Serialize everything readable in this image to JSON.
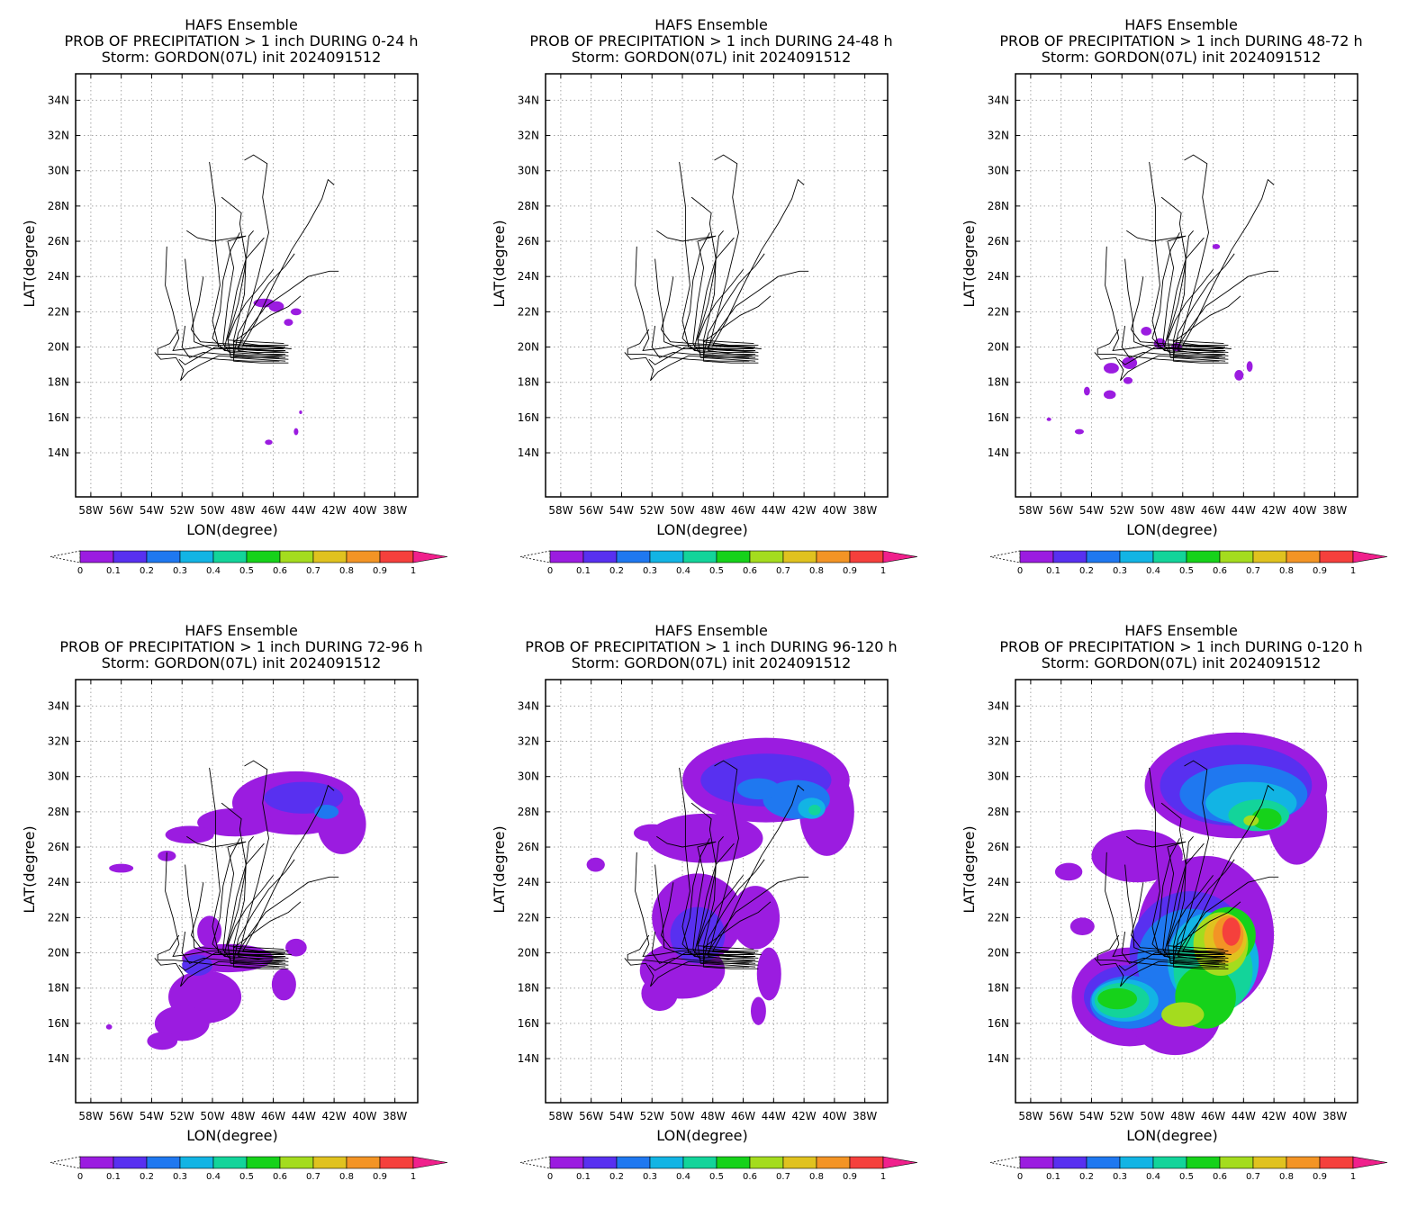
{
  "colors": {
    "levels": [
      "#9b1ce0",
      "#5830f0",
      "#1f78f0",
      "#12b4e4",
      "#13d49a",
      "#16d21a",
      "#a4dc1e",
      "#e0c21f",
      "#f39425",
      "#f5403c",
      "#f0208c"
    ],
    "track": "#000000",
    "grid": "#a6a6a6"
  },
  "colorbar": {
    "labels": [
      "0",
      "0.1",
      "0.2",
      "0.3",
      "0.4",
      "0.5",
      "0.6",
      "0.7",
      "0.8",
      "0.9",
      "1"
    ]
  },
  "axes": {
    "xlabel": "LON(degree)",
    "ylabel": "LAT(degree)",
    "xticks": [
      "58W",
      "56W",
      "54W",
      "52W",
      "50W",
      "48W",
      "46W",
      "44W",
      "42W",
      "40W",
      "38W"
    ],
    "yticks": [
      "34N",
      "32N",
      "30N",
      "28N",
      "26N",
      "24N",
      "22N",
      "20N",
      "18N",
      "16N",
      "14N"
    ],
    "xlim": [
      -59,
      -36.5
    ],
    "ylim": [
      11.5,
      35.5
    ]
  },
  "panels": [
    {
      "title1": "HAFS Ensemble",
      "title2": "PROB OF PRECIPITATION > 1 inch DURING  0-24 h",
      "title3": "Storm: GORDON(07L) init 2024091512"
    },
    {
      "title1": "HAFS Ensemble",
      "title2": "PROB OF PRECIPITATION > 1 inch DURING 24-48 h",
      "title3": "Storm: GORDON(07L) init 2024091512"
    },
    {
      "title1": "HAFS Ensemble",
      "title2": "PROB OF PRECIPITATION > 1 inch DURING 48-72 h",
      "title3": "Storm: GORDON(07L) init 2024091512"
    },
    {
      "title1": "HAFS Ensemble",
      "title2": "PROB OF PRECIPITATION > 1 inch DURING 72-96 h",
      "title3": "Storm: GORDON(07L) init 2024091512"
    },
    {
      "title1": "HAFS Ensemble",
      "title2": "PROB OF PRECIPITATION > 1 inch DURING 96-120 h",
      "title3": "Storm: GORDON(07L) init 2024091512"
    },
    {
      "title1": "HAFS Ensemble",
      "title2": "PROB OF PRECIPITATION > 1 inch DURING 0-120 h",
      "title3": "Storm: GORDON(07L) init 2024091512"
    }
  ],
  "tracks": [
    [
      [
        -45.2,
        20.0
      ],
      [
        -47.0,
        20.0
      ],
      [
        -48.8,
        20.1
      ],
      [
        -50.2,
        20.1
      ],
      [
        -51.6,
        19.9
      ],
      [
        -52.6,
        19.8
      ],
      [
        -52.2,
        20.5
      ],
      [
        -52.6,
        22.0
      ],
      [
        -53.1,
        23.5
      ],
      [
        -53.0,
        25.7
      ]
    ],
    [
      [
        -45.2,
        19.8
      ],
      [
        -47.0,
        19.8
      ],
      [
        -48.8,
        19.9
      ],
      [
        -50.0,
        19.9
      ],
      [
        -51.2,
        20.3
      ],
      [
        -51.3,
        21.7
      ],
      [
        -51.6,
        23.2
      ],
      [
        -51.8,
        25.0
      ]
    ],
    [
      [
        -45.2,
        19.6
      ],
      [
        -47.0,
        19.6
      ],
      [
        -48.8,
        19.7
      ],
      [
        -49.6,
        20.0
      ],
      [
        -50.0,
        21.5
      ],
      [
        -49.5,
        23.5
      ],
      [
        -49.8,
        26.0
      ],
      [
        -49.8,
        28.0
      ],
      [
        -50.2,
        30.5
      ]
    ],
    [
      [
        -45.2,
        19.4
      ],
      [
        -47.0,
        19.5
      ],
      [
        -48.8,
        19.6
      ],
      [
        -49.3,
        20.2
      ],
      [
        -49.0,
        22.5
      ],
      [
        -48.6,
        24.5
      ],
      [
        -49.0,
        26.0
      ],
      [
        -47.8,
        26.3
      ],
      [
        -50.0,
        26.0
      ],
      [
        -51.0,
        26.2
      ],
      [
        -51.7,
        26.6
      ]
    ],
    [
      [
        -45.2,
        19.2
      ],
      [
        -47.0,
        19.3
      ],
      [
        -48.8,
        19.4
      ],
      [
        -49.0,
        20.5
      ],
      [
        -48.3,
        22.5
      ],
      [
        -47.9,
        24.3
      ],
      [
        -47.6,
        26.3
      ],
      [
        -47.3,
        26.6
      ]
    ],
    [
      [
        -45.0,
        19.1
      ],
      [
        -46.8,
        19.1
      ],
      [
        -48.6,
        19.2
      ],
      [
        -48.6,
        20.4
      ],
      [
        -47.9,
        23.0
      ],
      [
        -47.8,
        25.0
      ],
      [
        -48.2,
        27.0
      ],
      [
        -48.1,
        27.6
      ],
      [
        -49.4,
        28.5
      ]
    ],
    [
      [
        -45.0,
        19.5
      ],
      [
        -46.6,
        19.6
      ],
      [
        -48.3,
        19.8
      ],
      [
        -47.8,
        21.5
      ],
      [
        -47.0,
        24.0
      ],
      [
        -46.3,
        26.5
      ],
      [
        -46.7,
        28.5
      ],
      [
        -46.4,
        30.4
      ],
      [
        -47.3,
        30.9
      ],
      [
        -47.9,
        30.6
      ]
    ],
    [
      [
        -44.8,
        19.9
      ],
      [
        -46.4,
        20.0
      ],
      [
        -48.0,
        20.1
      ],
      [
        -47.1,
        21.5
      ],
      [
        -46.0,
        23.5
      ],
      [
        -44.8,
        25.5
      ],
      [
        -43.7,
        27.0
      ],
      [
        -42.8,
        28.4
      ],
      [
        -42.4,
        29.5
      ],
      [
        -42.0,
        29.2
      ]
    ],
    [
      [
        -45.0,
        19.7
      ],
      [
        -46.8,
        19.8
      ],
      [
        -48.4,
        19.9
      ],
      [
        -47.6,
        21.0
      ],
      [
        -46.5,
        22.3
      ],
      [
        -45.0,
        23.2
      ],
      [
        -43.7,
        24.0
      ],
      [
        -42.3,
        24.3
      ],
      [
        -41.7,
        24.3
      ]
    ],
    [
      [
        -45.0,
        20.1
      ],
      [
        -46.9,
        20.1
      ],
      [
        -48.6,
        20.3
      ],
      [
        -47.5,
        21.0
      ],
      [
        -46.2,
        21.8
      ],
      [
        -45.0,
        22.3
      ],
      [
        -44.2,
        22.9
      ]
    ],
    [
      [
        -45.0,
        19.3
      ],
      [
        -47.0,
        19.4
      ],
      [
        -48.6,
        19.5
      ],
      [
        -48.3,
        20.8
      ],
      [
        -47.3,
        22.3
      ],
      [
        -46.3,
        23.6
      ],
      [
        -45.2,
        24.6
      ],
      [
        -44.6,
        25.3
      ]
    ],
    [
      [
        -45.3,
        20.2
      ],
      [
        -47.3,
        20.3
      ],
      [
        -49.0,
        20.4
      ],
      [
        -48.5,
        21.5
      ],
      [
        -47.8,
        22.5
      ],
      [
        -46.8,
        23.5
      ],
      [
        -46.0,
        24.4
      ]
    ],
    [
      [
        -45.3,
        19.9
      ],
      [
        -47.3,
        19.9
      ],
      [
        -49.2,
        20.0
      ],
      [
        -48.8,
        21.4
      ],
      [
        -48.4,
        23.2
      ],
      [
        -47.8,
        25.0
      ],
      [
        -46.6,
        26.2
      ]
    ],
    [
      [
        -45.3,
        19.7
      ],
      [
        -47.2,
        19.7
      ],
      [
        -49.2,
        19.8
      ],
      [
        -50.0,
        20.5
      ],
      [
        -49.5,
        22.0
      ],
      [
        -49.3,
        23.8
      ],
      [
        -48.8,
        25.5
      ],
      [
        -48.2,
        26.5
      ]
    ],
    [
      [
        -45.4,
        20.0
      ],
      [
        -47.4,
        20.1
      ],
      [
        -49.4,
        20.2
      ],
      [
        -50.8,
        20.3
      ],
      [
        -51.4,
        21.0
      ],
      [
        -50.9,
        22.5
      ],
      [
        -50.6,
        24.0
      ]
    ],
    [
      [
        -45.4,
        19.5
      ],
      [
        -47.4,
        19.5
      ],
      [
        -49.4,
        19.6
      ],
      [
        -50.6,
        19.7
      ],
      [
        -51.5,
        19.4
      ],
      [
        -52.0,
        20.0
      ],
      [
        -51.8,
        21.2
      ]
    ],
    [
      [
        -45.6,
        19.2
      ],
      [
        -47.6,
        19.2
      ],
      [
        -49.6,
        19.3
      ],
      [
        -50.6,
        19.4
      ],
      [
        -51.6,
        19.5
      ],
      [
        -52.6,
        19.6
      ],
      [
        -53.6,
        19.6
      ],
      [
        -53.6,
        19.9
      ],
      [
        -52.8,
        20.2
      ],
      [
        -52.2,
        21.0
      ]
    ],
    [
      [
        -45.6,
        19.4
      ],
      [
        -47.6,
        19.4
      ],
      [
        -49.6,
        19.5
      ],
      [
        -50.8,
        19.0
      ],
      [
        -51.6,
        18.6
      ],
      [
        -52.1,
        18.1
      ],
      [
        -51.9,
        18.7
      ],
      [
        -52.4,
        19.4
      ],
      [
        -53.4,
        19.3
      ],
      [
        -53.8,
        19.7
      ]
    ],
    [
      [
        -46.0,
        19.8
      ],
      [
        -47.8,
        19.9
      ],
      [
        -49.8,
        20.0
      ],
      [
        -51.0,
        19.4
      ],
      [
        -51.8,
        19.0
      ],
      [
        -52.2,
        19.3
      ]
    ]
  ],
  "precip": [
    [
      {
        "lvl": 0,
        "lon": -46.6,
        "lat": 22.5,
        "rx": 0.7,
        "ry": 0.25
      },
      {
        "lvl": 0,
        "lon": -45.8,
        "lat": 22.3,
        "rx": 0.5,
        "ry": 0.3
      },
      {
        "lvl": 0,
        "lon": -44.5,
        "lat": 22.0,
        "rx": 0.35,
        "ry": 0.2
      },
      {
        "lvl": 0,
        "lon": -45.0,
        "lat": 21.4,
        "rx": 0.3,
        "ry": 0.2
      },
      {
        "lvl": 0,
        "lon": -46.3,
        "lat": 14.6,
        "rx": 0.25,
        "ry": 0.15
      },
      {
        "lvl": 0,
        "lon": -44.5,
        "lat": 15.2,
        "rx": 0.15,
        "ry": 0.2
      },
      {
        "lvl": 0,
        "lon": -44.2,
        "lat": 16.3,
        "rx": 0.1,
        "ry": 0.1
      }
    ],
    [],
    [
      {
        "lvl": 0,
        "lon": -51.5,
        "lat": 19.1,
        "rx": 0.5,
        "ry": 0.35
      },
      {
        "lvl": 0,
        "lon": -52.7,
        "lat": 18.8,
        "rx": 0.5,
        "ry": 0.3
      },
      {
        "lvl": 0,
        "lon": -51.6,
        "lat": 18.1,
        "rx": 0.3,
        "ry": 0.2
      },
      {
        "lvl": 0,
        "lon": -50.4,
        "lat": 20.9,
        "rx": 0.35,
        "ry": 0.25
      },
      {
        "lvl": 0,
        "lon": -49.5,
        "lat": 20.2,
        "rx": 0.4,
        "ry": 0.3
      },
      {
        "lvl": 0,
        "lon": -48.4,
        "lat": 20.0,
        "rx": 0.35,
        "ry": 0.25
      },
      {
        "lvl": 0,
        "lon": -52.8,
        "lat": 17.3,
        "rx": 0.4,
        "ry": 0.25
      },
      {
        "lvl": 0,
        "lon": -54.3,
        "lat": 17.5,
        "rx": 0.2,
        "ry": 0.25
      },
      {
        "lvl": 0,
        "lon": -54.8,
        "lat": 15.2,
        "rx": 0.3,
        "ry": 0.15
      },
      {
        "lvl": 0,
        "lon": -56.8,
        "lat": 15.9,
        "rx": 0.15,
        "ry": 0.1
      },
      {
        "lvl": 0,
        "lon": -44.3,
        "lat": 18.4,
        "rx": 0.3,
        "ry": 0.3
      },
      {
        "lvl": 0,
        "lon": -43.6,
        "lat": 18.9,
        "rx": 0.2,
        "ry": 0.3
      },
      {
        "lvl": 0,
        "lon": -45.8,
        "lat": 25.7,
        "rx": 0.25,
        "ry": 0.15
      }
    ],
    [
      {
        "lvl": 0,
        "lon": -44.5,
        "lat": 28.5,
        "rx": 4.2,
        "ry": 1.8
      },
      {
        "lvl": 0,
        "lon": -41.5,
        "lat": 27.3,
        "rx": 1.6,
        "ry": 1.7
      },
      {
        "lvl": 0,
        "lon": -48.5,
        "lat": 27.4,
        "rx": 2.5,
        "ry": 0.8
      },
      {
        "lvl": 0,
        "lon": -51.5,
        "lat": 26.7,
        "rx": 1.6,
        "ry": 0.5
      },
      {
        "lvl": 0,
        "lon": -56.0,
        "lat": 24.8,
        "rx": 0.8,
        "ry": 0.25
      },
      {
        "lvl": 0,
        "lon": -53.0,
        "lat": 25.5,
        "rx": 0.6,
        "ry": 0.3
      },
      {
        "lvl": 1,
        "lon": -44.0,
        "lat": 28.8,
        "rx": 2.6,
        "ry": 0.9
      },
      {
        "lvl": 2,
        "lon": -42.5,
        "lat": 28.0,
        "rx": 0.8,
        "ry": 0.4
      },
      {
        "lvl": 0,
        "lon": -50.5,
        "lat": 17.5,
        "rx": 2.4,
        "ry": 1.5
      },
      {
        "lvl": 0,
        "lon": -52.0,
        "lat": 16.0,
        "rx": 1.8,
        "ry": 1.0
      },
      {
        "lvl": 0,
        "lon": -53.3,
        "lat": 15.0,
        "rx": 1.0,
        "ry": 0.5
      },
      {
        "lvl": 0,
        "lon": -49.0,
        "lat": 19.7,
        "rx": 3.0,
        "ry": 0.8
      },
      {
        "lvl": 0,
        "lon": -50.2,
        "lat": 21.2,
        "rx": 0.8,
        "ry": 0.9
      },
      {
        "lvl": 0,
        "lon": -45.3,
        "lat": 18.2,
        "rx": 0.8,
        "ry": 0.9
      },
      {
        "lvl": 0,
        "lon": -44.5,
        "lat": 20.3,
        "rx": 0.7,
        "ry": 0.5
      },
      {
        "lvl": 1,
        "lon": -51.0,
        "lat": 19.3,
        "rx": 1.0,
        "ry": 0.6
      },
      {
        "lvl": 0,
        "lon": -56.8,
        "lat": 15.8,
        "rx": 0.2,
        "ry": 0.15
      }
    ],
    [
      {
        "lvl": 0,
        "lon": -44.5,
        "lat": 29.8,
        "rx": 5.5,
        "ry": 2.4
      },
      {
        "lvl": 0,
        "lon": -40.5,
        "lat": 28.0,
        "rx": 1.8,
        "ry": 2.5
      },
      {
        "lvl": 0,
        "lon": -48.5,
        "lat": 26.5,
        "rx": 3.8,
        "ry": 1.4
      },
      {
        "lvl": 0,
        "lon": -49.0,
        "lat": 22.0,
        "rx": 3.0,
        "ry": 2.5
      },
      {
        "lvl": 0,
        "lon": -50.0,
        "lat": 19.0,
        "rx": 2.8,
        "ry": 1.6
      },
      {
        "lvl": 0,
        "lon": -51.5,
        "lat": 17.7,
        "rx": 1.2,
        "ry": 1.0
      },
      {
        "lvl": 0,
        "lon": -45.2,
        "lat": 22.0,
        "rx": 1.6,
        "ry": 1.8
      },
      {
        "lvl": 0,
        "lon": -44.3,
        "lat": 18.8,
        "rx": 0.8,
        "ry": 1.5
      },
      {
        "lvl": 0,
        "lon": -45.0,
        "lat": 16.7,
        "rx": 0.5,
        "ry": 0.8
      },
      {
        "lvl": 0,
        "lon": -55.7,
        "lat": 25.0,
        "rx": 0.6,
        "ry": 0.4
      },
      {
        "lvl": 0,
        "lon": -52.0,
        "lat": 26.8,
        "rx": 1.2,
        "ry": 0.5
      },
      {
        "lvl": 1,
        "lon": -44.5,
        "lat": 29.8,
        "rx": 4.3,
        "ry": 1.5
      },
      {
        "lvl": 1,
        "lon": -49.0,
        "lat": 21.0,
        "rx": 1.8,
        "ry": 1.6
      },
      {
        "lvl": 2,
        "lon": -42.5,
        "lat": 28.7,
        "rx": 2.2,
        "ry": 1.1
      },
      {
        "lvl": 2,
        "lon": -45.0,
        "lat": 29.3,
        "rx": 1.4,
        "ry": 0.6
      },
      {
        "lvl": 3,
        "lon": -41.5,
        "lat": 28.2,
        "rx": 0.9,
        "ry": 0.6
      },
      {
        "lvl": 4,
        "lon": -41.3,
        "lat": 28.1,
        "rx": 0.4,
        "ry": 0.3
      }
    ],
    [
      {
        "lvl": 0,
        "lon": -44.5,
        "lat": 29.5,
        "rx": 6.0,
        "ry": 3.0
      },
      {
        "lvl": 0,
        "lon": -40.5,
        "lat": 28.0,
        "rx": 2.0,
        "ry": 3.0
      },
      {
        "lvl": 0,
        "lon": -46.5,
        "lat": 21.0,
        "rx": 4.5,
        "ry": 4.5
      },
      {
        "lvl": 0,
        "lon": -51.5,
        "lat": 17.5,
        "rx": 3.8,
        "ry": 2.8
      },
      {
        "lvl": 0,
        "lon": -48.5,
        "lat": 16.5,
        "rx": 3.0,
        "ry": 2.3
      },
      {
        "lvl": 0,
        "lon": -51.0,
        "lat": 25.5,
        "rx": 3.0,
        "ry": 1.5
      },
      {
        "lvl": 0,
        "lon": -55.5,
        "lat": 24.6,
        "rx": 0.9,
        "ry": 0.5
      },
      {
        "lvl": 0,
        "lon": -54.6,
        "lat": 21.5,
        "rx": 0.8,
        "ry": 0.5
      },
      {
        "lvl": 1,
        "lon": -44.5,
        "lat": 29.5,
        "rx": 5.0,
        "ry": 2.3
      },
      {
        "lvl": 1,
        "lon": -47.5,
        "lat": 20.0,
        "rx": 4.0,
        "ry": 3.5
      },
      {
        "lvl": 1,
        "lon": -51.5,
        "lat": 17.5,
        "rx": 3.0,
        "ry": 1.8
      },
      {
        "lvl": 2,
        "lon": -44.0,
        "lat": 29.0,
        "rx": 4.2,
        "ry": 1.7
      },
      {
        "lvl": 2,
        "lon": -47.5,
        "lat": 19.5,
        "rx": 3.5,
        "ry": 3.0
      },
      {
        "lvl": 2,
        "lon": -51.5,
        "lat": 17.2,
        "rx": 2.6,
        "ry": 1.5
      },
      {
        "lvl": 3,
        "lon": -43.5,
        "lat": 28.5,
        "rx": 3.0,
        "ry": 1.2
      },
      {
        "lvl": 3,
        "lon": -46.0,
        "lat": 19.5,
        "rx": 3.0,
        "ry": 2.8
      },
      {
        "lvl": 3,
        "lon": -51.8,
        "lat": 17.3,
        "rx": 2.2,
        "ry": 1.2
      },
      {
        "lvl": 4,
        "lon": -43.0,
        "lat": 27.8,
        "rx": 2.0,
        "ry": 0.9
      },
      {
        "lvl": 4,
        "lon": -46.0,
        "lat": 19.0,
        "rx": 2.6,
        "ry": 2.5
      },
      {
        "lvl": 4,
        "lon": -52.0,
        "lat": 17.3,
        "rx": 1.8,
        "ry": 1.0
      },
      {
        "lvl": 5,
        "lon": -42.5,
        "lat": 27.6,
        "rx": 1.0,
        "ry": 0.6
      },
      {
        "lvl": 5,
        "lon": -46.5,
        "lat": 17.5,
        "rx": 2.0,
        "ry": 1.8
      },
      {
        "lvl": 5,
        "lon": -45.0,
        "lat": 21.0,
        "rx": 1.8,
        "ry": 1.6
      },
      {
        "lvl": 5,
        "lon": -52.3,
        "lat": 17.4,
        "rx": 1.3,
        "ry": 0.6
      },
      {
        "lvl": 6,
        "lon": -45.5,
        "lat": 20.5,
        "rx": 1.8,
        "ry": 1.8
      },
      {
        "lvl": 6,
        "lon": -48.0,
        "lat": 16.5,
        "rx": 1.4,
        "ry": 0.7
      },
      {
        "lvl": 6,
        "lon": -43.5,
        "lat": 27.5,
        "rx": 0.5,
        "ry": 0.3
      },
      {
        "lvl": 7,
        "lon": -45.2,
        "lat": 20.8,
        "rx": 1.4,
        "ry": 1.4
      },
      {
        "lvl": 8,
        "lon": -45.0,
        "lat": 21.0,
        "rx": 1.0,
        "ry": 1.1
      },
      {
        "lvl": 9,
        "lon": -44.8,
        "lat": 21.2,
        "rx": 0.6,
        "ry": 0.8
      }
    ]
  ]
}
